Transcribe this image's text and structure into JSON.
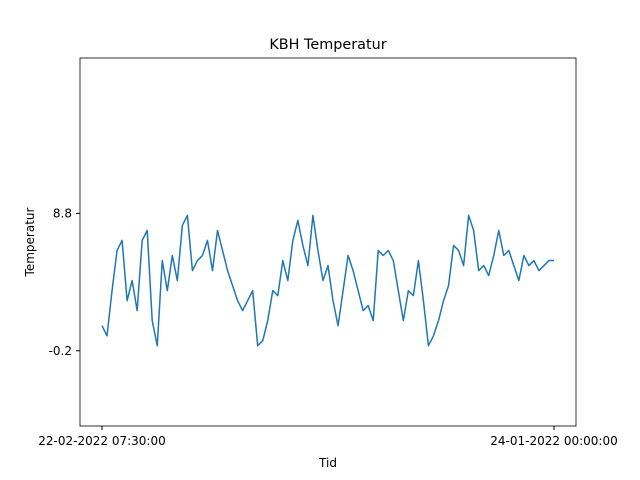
{
  "chart_data": {
    "type": "line",
    "title": "KBH Temperatur",
    "x_label": "Tid",
    "y_label": "Temperatur",
    "x": [
      0,
      1,
      2,
      3,
      4,
      5,
      6,
      7,
      8,
      9,
      10,
      11,
      12,
      13,
      14,
      15,
      16,
      17,
      18,
      19,
      20,
      21,
      22,
      23,
      24,
      25,
      26,
      27,
      28,
      29,
      30,
      31,
      32,
      33,
      34,
      35,
      36,
      37,
      38,
      39,
      40,
      41,
      42,
      43,
      44,
      45,
      46,
      47,
      48,
      49,
      50,
      51,
      52,
      53,
      54,
      55,
      56,
      57,
      58,
      59,
      60,
      61,
      62,
      63,
      64,
      65,
      66,
      67,
      68,
      69,
      70,
      71,
      72,
      73,
      74,
      75,
      76,
      77,
      78,
      79,
      80,
      81,
      82,
      83,
      84,
      85,
      86,
      87,
      88,
      89,
      90
    ],
    "series": [
      {
        "name": "Temperatur",
        "color": "#1f77b4",
        "values": [
          1.44,
          0.78,
          3.74,
          6.37,
          7.03,
          3.08,
          4.4,
          2.43,
          7.03,
          7.68,
          1.77,
          0.13,
          5.71,
          3.74,
          6.04,
          4.4,
          8.01,
          8.67,
          5.05,
          5.71,
          6.04,
          7.03,
          5.05,
          7.68,
          6.37,
          5.05,
          4.07,
          3.08,
          2.43,
          3.08,
          3.74,
          0.13,
          0.46,
          1.77,
          3.74,
          3.41,
          5.71,
          4.4,
          7.03,
          8.34,
          6.7,
          5.38,
          8.67,
          6.37,
          4.4,
          5.38,
          3.08,
          1.44,
          3.74,
          6.04,
          5.05,
          3.74,
          2.43,
          2.76,
          1.77,
          6.37,
          6.04,
          6.37,
          5.71,
          3.74,
          1.77,
          3.74,
          3.41,
          5.71,
          3.08,
          0.13,
          0.78,
          1.77,
          3.08,
          4.07,
          6.7,
          6.37,
          5.38,
          8.67,
          7.68,
          5.05,
          5.38,
          4.73,
          6.04,
          7.68,
          6.04,
          6.37,
          5.38,
          4.4,
          6.04,
          5.38,
          5.71,
          5.05,
          5.38,
          5.71,
          5.71
        ]
      }
    ],
    "xlim": [
      -4.38,
      94.38
    ],
    "xticks": [
      {
        "value": 0,
        "label": "22-02-2022 07:30:00"
      },
      {
        "value": 90,
        "label": "24-01-2022 00:00:00"
      }
    ],
    "ylim": [
      -5.13,
      18.98
    ],
    "yticks": [
      8.8,
      -0.2
    ]
  }
}
